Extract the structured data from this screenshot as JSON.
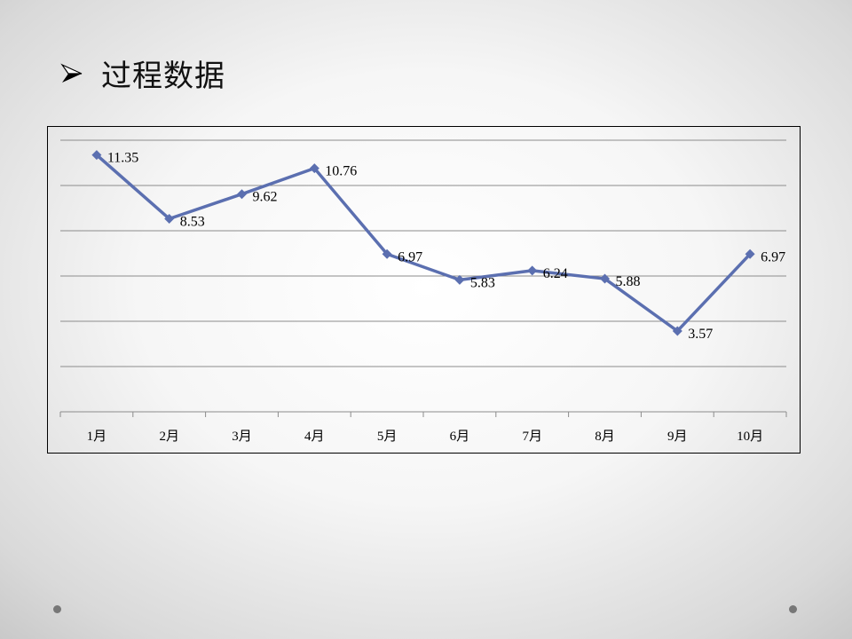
{
  "title": "过程数据",
  "icons": {
    "bullet": "arrowhead-bullet-icon"
  },
  "colors": {
    "series": "#5b6fb0",
    "grid": "#8c8c8c",
    "text": "#000000"
  },
  "chart_data": {
    "type": "line",
    "categories": [
      "1月",
      "2月",
      "3月",
      "4月",
      "5月",
      "6月",
      "7月",
      "8月",
      "9月",
      "10月"
    ],
    "series": [
      {
        "name": "过程数据",
        "values": [
          11.35,
          8.53,
          9.62,
          10.76,
          6.97,
          5.83,
          6.24,
          5.88,
          3.57,
          6.97
        ]
      }
    ],
    "labels": [
      "11.35",
      "8.53",
      "9.62",
      "10.76",
      "6.97",
      "5.83",
      "6.24",
      "5.88",
      "3.57",
      "6.97"
    ],
    "ylim": [
      0,
      12
    ],
    "y_grid_step": 2,
    "grid": true,
    "marker": "diamond",
    "legend": "none"
  }
}
